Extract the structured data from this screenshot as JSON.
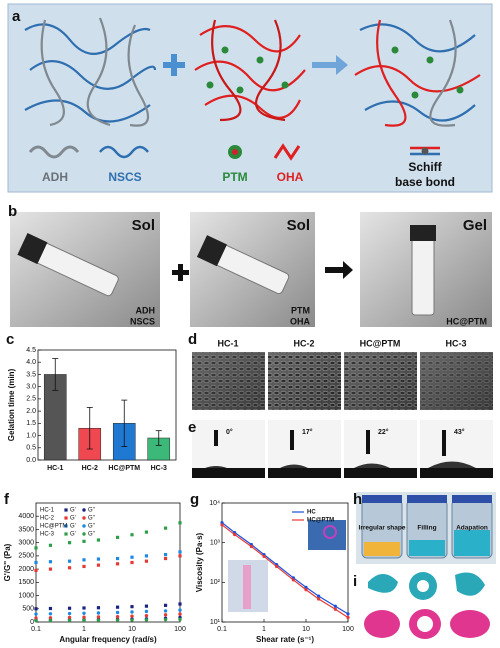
{
  "panel_letters": [
    "a",
    "b",
    "c",
    "d",
    "e",
    "f",
    "g",
    "h",
    "i"
  ],
  "panel_a": {
    "components": [
      "ADH",
      "NSCS",
      "PTM",
      "OHA"
    ],
    "bond": [
      "Schiff",
      "base bond"
    ]
  },
  "panel_b": {
    "states": [
      "Sol",
      "Sol",
      "Gel"
    ],
    "contents": [
      [
        "ADH",
        "NSCS"
      ],
      [
        "PTM",
        "OHA"
      ],
      [
        "HC@PTM"
      ]
    ]
  },
  "panel_c": {
    "type": "bar",
    "ylabel": "Gelation time (min)",
    "categories": [
      "HC-1",
      "HC-2",
      "HC@PTM",
      "HC-3"
    ],
    "values": [
      3.5,
      1.3,
      1.5,
      0.9
    ],
    "errors": [
      0.65,
      0.85,
      0.95,
      0.3
    ],
    "colors": [
      "#555555",
      "#f04850",
      "#1f78d1",
      "#3cb878"
    ],
    "ylim": [
      0,
      4.5
    ],
    "yticks": [
      {
        "value": 0,
        "label": "0.0"
      },
      0.5,
      {
        "value": 1,
        "label": "1.0"
      },
      1.5,
      {
        "value": 2,
        "label": "2.0"
      },
      2.5,
      {
        "value": 3,
        "label": "3.0"
      },
      3.5,
      {
        "value": 4,
        "label": "4.0"
      },
      4.5
    ]
  },
  "panel_d": {
    "samples": [
      "HC-1",
      "HC-2",
      "HC@PTM",
      "HC-3"
    ]
  },
  "panel_e": {
    "values": [
      0,
      17,
      22,
      43
    ],
    "value_labels": [
      "0°",
      "17°",
      "22°",
      "43°"
    ]
  },
  "panel_f": {
    "type": "scatter",
    "xlabel": "Angular frequency (rad/s)",
    "ylabel": "G'/G'' (Pa)",
    "log_x": true,
    "x": [
      0.1,
      0.2,
      0.5,
      1,
      2,
      5,
      10,
      20,
      50,
      100
    ],
    "xlim": [
      0.1,
      100
    ],
    "xticks": [
      0.1,
      1,
      10,
      100
    ],
    "ylim": [
      0,
      4500
    ],
    "yticks": [
      0,
      500,
      1000,
      1500,
      2000,
      2500,
      3000,
      3500,
      4000
    ],
    "series": [
      {
        "name": "HC-1",
        "storage": {
          "name": "G'",
          "color": "#1a237e",
          "values": [
            500,
            510,
            520,
            530,
            540,
            560,
            580,
            600,
            630,
            680
          ]
        },
        "loss": {
          "name": "G''",
          "color": "#1a237e",
          "values": [
            80,
            80,
            85,
            90,
            95,
            100,
            110,
            120,
            140,
            170
          ]
        }
      },
      {
        "name": "HC-2",
        "storage": {
          "name": "G'",
          "color": "#e53935",
          "values": [
            1950,
            2000,
            2050,
            2100,
            2150,
            2200,
            2250,
            2300,
            2400,
            2500
          ]
        },
        "loss": {
          "name": "G''",
          "color": "#e53935",
          "values": [
            150,
            160,
            170,
            180,
            190,
            200,
            220,
            240,
            270,
            300
          ]
        }
      },
      {
        "name": "HC@PTM",
        "storage": {
          "name": "G'",
          "color": "#1e88e5",
          "values": [
            2250,
            2280,
            2300,
            2350,
            2380,
            2400,
            2450,
            2500,
            2550,
            2650
          ]
        },
        "loss": {
          "name": "G''",
          "color": "#1e88e5",
          "values": [
            300,
            310,
            320,
            330,
            340,
            360,
            380,
            400,
            420,
            450
          ]
        }
      },
      {
        "name": "HC-3",
        "storage": {
          "name": "G'",
          "color": "#2e9d4a",
          "values": [
            2800,
            2900,
            3000,
            3050,
            3100,
            3200,
            3300,
            3400,
            3550,
            3750
          ]
        },
        "loss": {
          "name": "G''",
          "color": "#2e9d4a",
          "values": [
            50,
            55,
            60,
            62,
            65,
            70,
            75,
            80,
            90,
            100
          ]
        }
      }
    ]
  },
  "panel_g": {
    "type": "line",
    "xlabel": "Shear rate (s⁻¹)",
    "ylabel": "Viscosity (Pa·s)",
    "log_x": true,
    "log_y": true,
    "x": [
      0.1,
      0.2,
      0.5,
      1,
      2,
      5,
      10,
      20,
      50,
      100
    ],
    "xlim": [
      0.1,
      100
    ],
    "xticks": [
      0.1,
      1,
      10,
      100
    ],
    "ylim": [
      10,
      10000
    ],
    "yticks": [
      {
        "value": 10,
        "label": "10¹"
      },
      {
        "value": 100,
        "label": "10²"
      },
      {
        "value": 1000,
        "label": "10³"
      },
      {
        "value": 10000,
        "label": "10⁴"
      }
    ],
    "series": [
      {
        "name": "HC",
        "color": "#1e4fd8",
        "values": [
          3200,
          1800,
          900,
          500,
          280,
          130,
          75,
          45,
          25,
          16
        ]
      },
      {
        "name": "HC@PTM",
        "color": "#e53935",
        "values": [
          2800,
          1600,
          800,
          450,
          250,
          115,
          65,
          38,
          21,
          13
        ]
      }
    ]
  },
  "panel_h": {
    "captions": [
      "Irregular shape",
      "Filling",
      "Adapation"
    ]
  }
}
